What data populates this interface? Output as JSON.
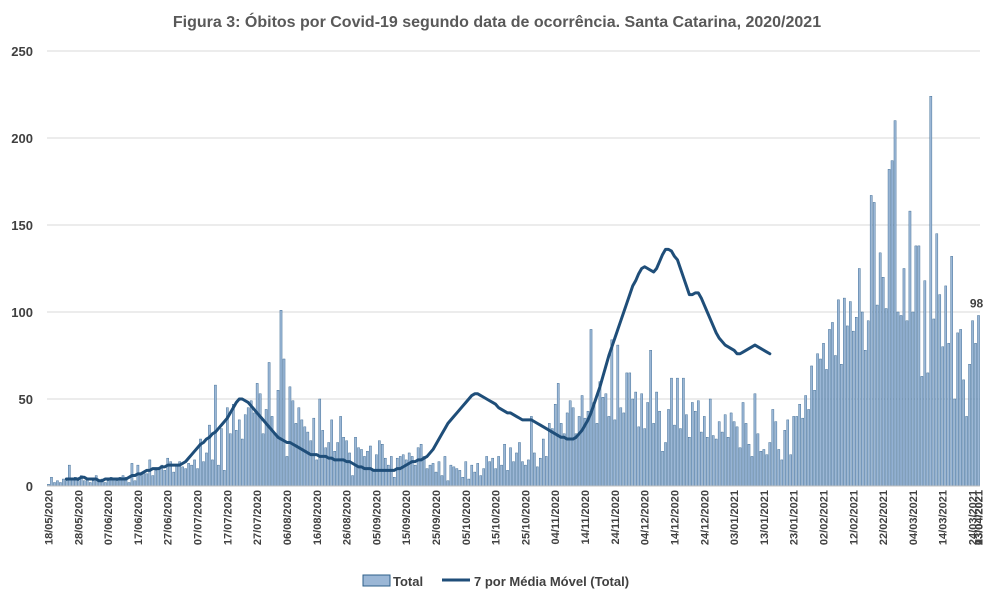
{
  "chart_data": {
    "type": "bar",
    "title": "Figura 3: Óbitos por Covid-19 segundo data de ocorrência. Santa Catarina, 2020/2021",
    "xlabel": "",
    "ylabel": "",
    "ylim": [
      0,
      250
    ],
    "yticks": [
      0,
      50,
      100,
      150,
      200,
      250
    ],
    "grid": true,
    "legend_position": "bottom",
    "bar_color": "#9bb7d6",
    "bar_edge_color": "#2e5f8a",
    "line_color": "#1f4e79",
    "x_tick_labels": [
      "18/05/2020",
      "28/05/2020",
      "07/06/2020",
      "17/06/2020",
      "27/06/2020",
      "07/07/2020",
      "17/07/2020",
      "27/07/2020",
      "06/08/2020",
      "16/08/2020",
      "26/08/2020",
      "05/09/2020",
      "15/09/2020",
      "25/09/2020",
      "05/10/2020",
      "15/10/2020",
      "25/10/2020",
      "04/11/2020",
      "14/11/2020",
      "24/11/2020",
      "04/12/2020",
      "14/12/2020",
      "24/12/2020",
      "03/01/2021",
      "13/01/2021",
      "23/01/2021",
      "02/02/2021",
      "12/02/2021",
      "22/02/2021",
      "04/03/2021",
      "14/03/2021",
      "24/03/2021",
      "03/04/2021",
      "13/04/2021",
      "23/04/2021"
    ],
    "x_start": "18/05/2020",
    "x_end": "23/04/2021",
    "series": [
      {
        "name": "Total",
        "type": "bar",
        "values": [
          1,
          5,
          2,
          3,
          2,
          4,
          3,
          12,
          4,
          5,
          3,
          6,
          3,
          4,
          2,
          3,
          6,
          3,
          4,
          2,
          3,
          5,
          4,
          3,
          5,
          6,
          5,
          2,
          13,
          3,
          12,
          6,
          8,
          7,
          15,
          6,
          9,
          10,
          12,
          9,
          16,
          14,
          8,
          12,
          14,
          11,
          10,
          13,
          12,
          15,
          10,
          27,
          14,
          19,
          35,
          15,
          58,
          12,
          33,
          9,
          45,
          30,
          47,
          32,
          38,
          27,
          41,
          45,
          49,
          42,
          59,
          53,
          30,
          44,
          71,
          40,
          30,
          55,
          101,
          73,
          17,
          57,
          49,
          36,
          45,
          38,
          34,
          31,
          26,
          39,
          15,
          50,
          32,
          22,
          25,
          38,
          20,
          25,
          40,
          28,
          26,
          19,
          6,
          28,
          22,
          21,
          17,
          20,
          23,
          9,
          18,
          26,
          24,
          16,
          12,
          17,
          5,
          16,
          17,
          18,
          15,
          19,
          17,
          12,
          22,
          24,
          17,
          10,
          12,
          13,
          8,
          14,
          6,
          17,
          3,
          12,
          11,
          10,
          9,
          5,
          14,
          4,
          12,
          8,
          13,
          6,
          10,
          17,
          14,
          16,
          10,
          17,
          12,
          24,
          9,
          22,
          14,
          19,
          25,
          14,
          12,
          15,
          40,
          19,
          11,
          16,
          27,
          17,
          36,
          33,
          47,
          59,
          36,
          30,
          42,
          49,
          45,
          30,
          40,
          52,
          39,
          43,
          90,
          48,
          36,
          60,
          51,
          53,
          40,
          84,
          38,
          81,
          45,
          42,
          65,
          65,
          50,
          54,
          34,
          53,
          33,
          48,
          78,
          36,
          54,
          43,
          20,
          25,
          44,
          62,
          35,
          62,
          33,
          62,
          41,
          28,
          48,
          43,
          49,
          31,
          40,
          28,
          50,
          29,
          27,
          37,
          31,
          41,
          28,
          42,
          37,
          34,
          22,
          48,
          36,
          24,
          17,
          53,
          30,
          20,
          21,
          18,
          25,
          44,
          37,
          21,
          15,
          32,
          38,
          18,
          40,
          40,
          47,
          39,
          52,
          44,
          69,
          55,
          76,
          73,
          82,
          67,
          90,
          94,
          75,
          107,
          70,
          108,
          92,
          106,
          89,
          97,
          125,
          100,
          78,
          95,
          167,
          163,
          104,
          134,
          120,
          102,
          182,
          187,
          210,
          100,
          98,
          125,
          95,
          158,
          100,
          138,
          138,
          63,
          118,
          65,
          224,
          96,
          145,
          110,
          80,
          115,
          82,
          132,
          50,
          88,
          90,
          61,
          40,
          70,
          95,
          82,
          98
        ]
      },
      {
        "name": "7 por Média Móvel (Total)",
        "type": "line",
        "start_index": 6,
        "values": [
          4,
          4,
          4,
          4,
          4,
          5,
          5,
          4,
          4,
          4,
          4,
          3,
          3,
          4,
          4,
          4,
          4,
          4,
          4,
          4,
          4,
          5,
          6,
          6,
          7,
          7,
          8,
          9,
          9,
          10,
          10,
          10,
          11,
          11,
          12,
          12,
          12,
          12,
          12,
          13,
          14,
          16,
          18,
          20,
          22,
          24,
          25,
          27,
          28,
          30,
          31,
          33,
          35,
          37,
          39,
          42,
          45,
          48,
          50,
          50,
          49,
          48,
          46,
          44,
          42,
          40,
          38,
          36,
          34,
          32,
          30,
          28,
          27,
          26,
          25,
          25,
          24,
          23,
          22,
          21,
          20,
          19,
          18,
          18,
          18,
          17,
          17,
          17,
          16,
          16,
          15,
          15,
          15,
          15,
          14,
          14,
          13,
          12,
          11,
          11,
          10,
          10,
          10,
          9,
          9,
          9,
          9,
          9,
          9,
          9,
          9,
          10,
          10,
          11,
          12,
          13,
          14,
          14,
          15,
          15,
          16,
          17,
          19,
          21,
          24,
          27,
          30,
          33,
          36,
          38,
          40,
          42,
          44,
          46,
          48,
          50,
          52,
          53,
          53,
          52,
          51,
          50,
          49,
          48,
          47,
          45,
          44,
          43,
          42,
          42,
          41,
          40,
          39,
          38,
          38,
          38,
          38,
          37,
          36,
          35,
          34,
          33,
          32,
          31,
          30,
          29,
          28,
          28,
          27,
          27,
          27,
          28,
          30,
          32,
          35,
          38,
          42,
          47,
          52,
          57,
          63,
          69,
          75,
          80,
          85,
          90,
          95,
          100,
          105,
          110,
          115,
          118,
          122,
          125,
          126,
          125,
          124,
          123,
          125,
          129,
          133,
          136,
          136,
          135,
          132,
          130,
          125,
          120,
          115,
          110,
          110,
          111,
          111,
          108,
          104,
          100,
          96,
          92,
          88,
          85,
          83,
          81,
          80,
          79,
          78,
          76,
          76,
          77,
          78,
          79,
          80,
          81,
          80,
          79,
          78,
          77,
          76
        ]
      }
    ],
    "data_label": {
      "text": "98",
      "series": "Total",
      "index": "last"
    }
  }
}
